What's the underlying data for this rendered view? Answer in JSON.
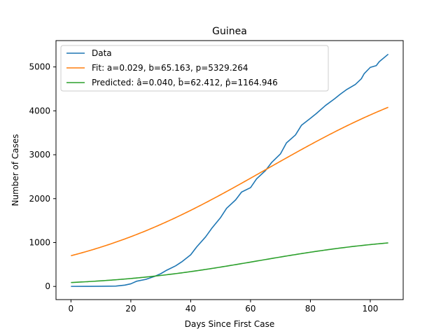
{
  "chart_data": {
    "type": "line",
    "title": "Guinea",
    "xlabel": "Days Since First Case",
    "ylabel": "Number of Cases",
    "xlim": [
      -5,
      111
    ],
    "ylim": [
      -300,
      5600
    ],
    "xticks": [
      0,
      20,
      40,
      60,
      80,
      100
    ],
    "yticks": [
      0,
      1000,
      2000,
      3000,
      4000,
      5000
    ],
    "grid": false,
    "legend_position": "upper left",
    "series": [
      {
        "name": "Data",
        "color": "#1f77b4",
        "x": [
          0,
          5,
          10,
          15,
          18,
          20,
          22,
          25,
          28,
          30,
          32,
          35,
          37,
          40,
          42,
          45,
          47,
          50,
          52,
          55,
          57,
          60,
          62,
          65,
          67,
          70,
          72,
          75,
          77,
          80,
          82,
          85,
          88,
          90,
          92,
          95,
          97,
          98,
          100,
          102,
          103,
          106
        ],
        "y": [
          1,
          2,
          4,
          8,
          30,
          60,
          120,
          160,
          230,
          290,
          370,
          470,
          560,
          720,
          900,
          1130,
          1320,
          1570,
          1780,
          1970,
          2150,
          2250,
          2450,
          2640,
          2820,
          3020,
          3270,
          3450,
          3670,
          3830,
          3940,
          4120,
          4270,
          4380,
          4480,
          4600,
          4730,
          4850,
          4990,
          5030,
          5120,
          5290
        ]
      },
      {
        "name": "Fit: a=0.029, b=65.163, p=5329.264",
        "color": "#ff7f0e",
        "model": "logistic",
        "params": {
          "a": 0.029,
          "b": 65.163,
          "p": 5329.264
        },
        "x_range": [
          0,
          106
        ]
      },
      {
        "name": "Predicted: â=0.040, b̂=62.412, p̂=1164.946",
        "color": "#2ca02c",
        "model": "logistic",
        "params": {
          "a": 0.04,
          "b": 62.412,
          "p": 1164.946
        },
        "x_range": [
          0,
          106
        ]
      }
    ]
  }
}
